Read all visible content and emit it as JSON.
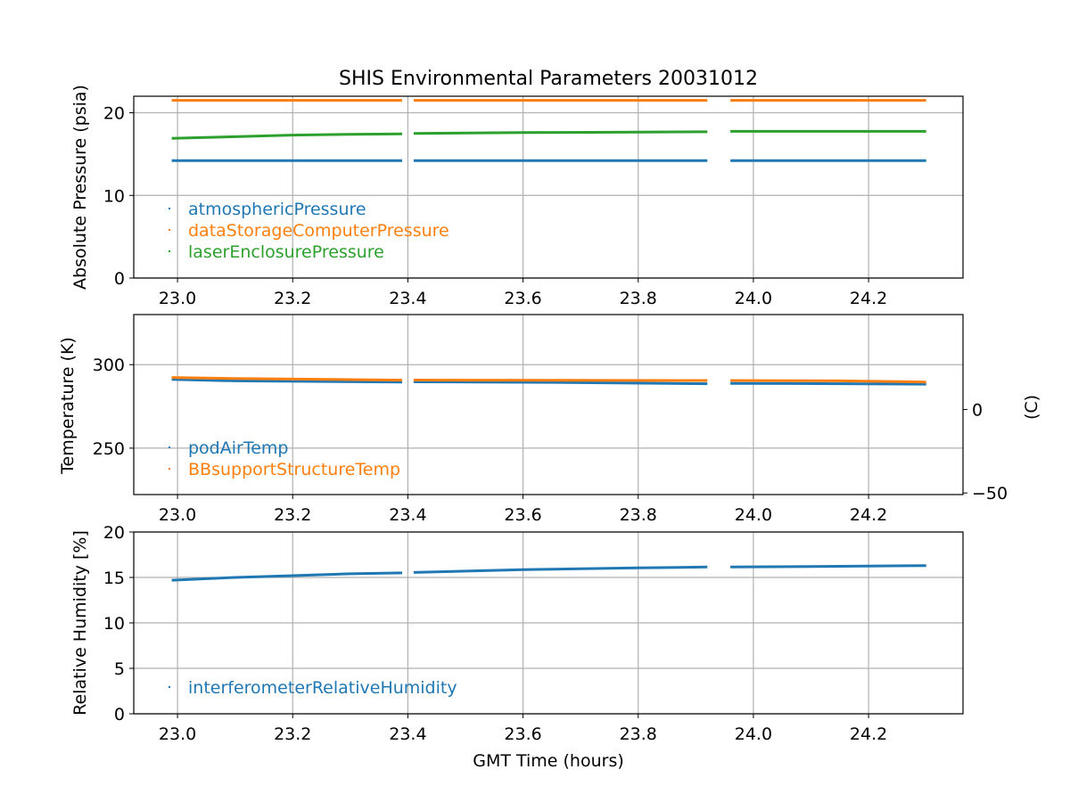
{
  "chart_data": {
    "title": "SHIS Environmental Parameters 20031012",
    "xlabel": "GMT Time (hours)",
    "colors": {
      "blue": "#1f77b4",
      "orange": "#ff7f0e",
      "green": "#2ca02c",
      "grid": "#b0b0b0"
    },
    "panels": [
      {
        "type": "scatter",
        "ylabel": "Absolute Pressure (psia)",
        "xlim": [
          22.924,
          24.364
        ],
        "ylim": [
          0,
          22.0
        ],
        "xticks": [
          "23.0",
          "23.2",
          "23.4",
          "23.6",
          "23.8",
          "24.0",
          "24.2"
        ],
        "yticks": [
          "0",
          "10",
          "20"
        ],
        "grid": true,
        "legend": "lower-left",
        "series": [
          {
            "name": "atmosphericPressure",
            "color": "blue",
            "segments": [
              [
                [
                  22.99,
                  14.2
                ],
                [
                  23.39,
                  14.2
                ]
              ],
              [
                [
                  23.41,
                  14.2
                ],
                [
                  23.92,
                  14.2
                ]
              ],
              [
                [
                  23.96,
                  14.2
                ],
                [
                  24.3,
                  14.2
                ]
              ]
            ]
          },
          {
            "name": "dataStorageComputerPressure",
            "color": "orange",
            "segments": [
              [
                [
                  22.99,
                  21.5
                ],
                [
                  23.39,
                  21.5
                ]
              ],
              [
                [
                  23.41,
                  21.5
                ],
                [
                  23.92,
                  21.5
                ]
              ],
              [
                [
                  23.96,
                  21.5
                ],
                [
                  24.3,
                  21.5
                ]
              ]
            ]
          },
          {
            "name": "laserEnclosurePressure",
            "color": "green",
            "segments": [
              [
                [
                  22.99,
                  16.9
                ],
                [
                  23.1,
                  17.1
                ],
                [
                  23.2,
                  17.3
                ],
                [
                  23.3,
                  17.4
                ],
                [
                  23.39,
                  17.45
                ]
              ],
              [
                [
                  23.41,
                  17.5
                ],
                [
                  23.6,
                  17.6
                ],
                [
                  23.8,
                  17.65
                ],
                [
                  23.92,
                  17.7
                ]
              ],
              [
                [
                  23.96,
                  17.75
                ],
                [
                  24.1,
                  17.75
                ],
                [
                  24.3,
                  17.75
                ]
              ]
            ]
          }
        ]
      },
      {
        "type": "scatter",
        "ylabel": "Temperature (K)",
        "y2label": "(C)",
        "xlim": [
          22.924,
          24.364
        ],
        "ylim": [
          222.2,
          330.0
        ],
        "y2lim": [
          -50.95,
          56.85
        ],
        "xticks": [
          "23.0",
          "23.2",
          "23.4",
          "23.6",
          "23.8",
          "24.0",
          "24.2"
        ],
        "yticks": [
          "250",
          "300"
        ],
        "y2ticks": [
          "−50",
          "0"
        ],
        "grid": true,
        "legend": "lower-left",
        "series": [
          {
            "name": "podAirTemp",
            "color": "blue",
            "segments": [
              [
                [
                  22.99,
                  291.2
                ],
                [
                  23.1,
                  290.3
                ],
                [
                  23.39,
                  289.6
                ]
              ],
              [
                [
                  23.41,
                  289.7
                ],
                [
                  23.65,
                  289.4
                ],
                [
                  23.92,
                  288.6
                ]
              ],
              [
                [
                  23.96,
                  288.8
                ],
                [
                  24.15,
                  288.6
                ],
                [
                  24.3,
                  288.3
                ]
              ]
            ]
          },
          {
            "name": "BBsupportStructureTemp",
            "color": "orange",
            "segments": [
              [
                [
                  22.99,
                  292.3
                ],
                [
                  23.1,
                  291.7
                ],
                [
                  23.39,
                  290.7
                ]
              ],
              [
                [
                  23.41,
                  290.8
                ],
                [
                  23.92,
                  290.5
                ]
              ],
              [
                [
                  23.96,
                  290.5
                ],
                [
                  24.15,
                  290.3
                ],
                [
                  24.3,
                  289.6
                ]
              ]
            ]
          }
        ]
      },
      {
        "type": "scatter",
        "ylabel": "Relative Humidity [%]",
        "xlim": [
          22.924,
          24.364
        ],
        "ylim": [
          0,
          20
        ],
        "xticks": [
          "23.0",
          "23.2",
          "23.4",
          "23.6",
          "23.8",
          "24.0",
          "24.2"
        ],
        "yticks": [
          "0",
          "5",
          "10",
          "15",
          "20"
        ],
        "grid": true,
        "legend": "lower-left",
        "series": [
          {
            "name": "interferometerRelativeHumidity",
            "color": "blue",
            "segments": [
              [
                [
                  22.99,
                  14.7
                ],
                [
                  23.1,
                  15.0
                ],
                [
                  23.2,
                  15.2
                ],
                [
                  23.3,
                  15.4
                ],
                [
                  23.39,
                  15.5
                ]
              ],
              [
                [
                  23.41,
                  15.55
                ],
                [
                  23.6,
                  15.85
                ],
                [
                  23.8,
                  16.05
                ],
                [
                  23.92,
                  16.15
                ]
              ],
              [
                [
                  23.96,
                  16.15
                ],
                [
                  24.1,
                  16.2
                ],
                [
                  24.3,
                  16.3
                ]
              ]
            ]
          }
        ]
      }
    ]
  }
}
